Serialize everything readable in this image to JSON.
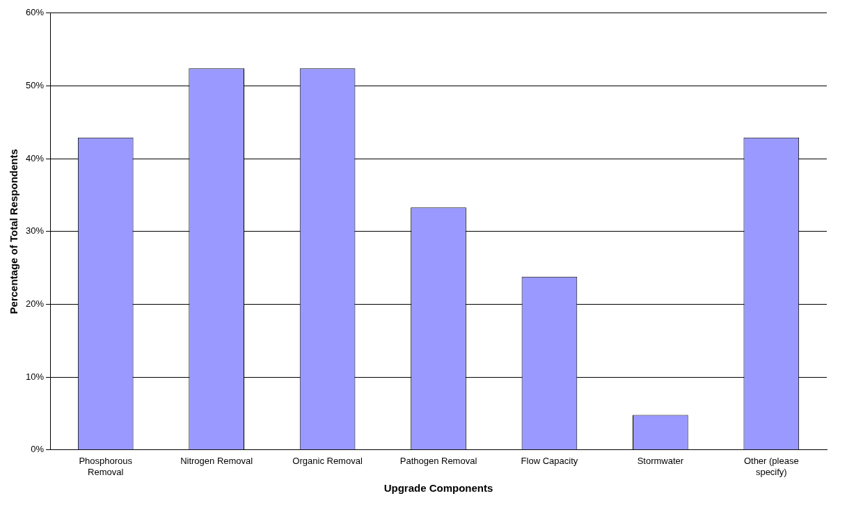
{
  "chart_data": {
    "type": "bar",
    "xlabel": "Upgrade Components",
    "ylabel": "Percentage of Total Respondents",
    "categories": [
      "Phosphorous Removal",
      "Nitrogen Removal",
      "Organic Removal",
      "Pathogen Removal",
      "Flow Capacity",
      "Stormwater",
      "Other (please specify)"
    ],
    "values": [
      42.9,
      52.4,
      52.4,
      33.3,
      23.8,
      4.8,
      42.9
    ],
    "color": "#9999ff",
    "ylim": [
      0,
      60
    ],
    "yticks": [
      {
        "value": 0,
        "label": "0%"
      },
      {
        "value": 10,
        "label": "10%"
      },
      {
        "value": 20,
        "label": "20%"
      },
      {
        "value": 30,
        "label": "30%"
      },
      {
        "value": 40,
        "label": "40%"
      },
      {
        "value": 50,
        "label": "50%"
      },
      {
        "value": 60,
        "label": "60%"
      }
    ],
    "grid": "y",
    "legend": false
  }
}
